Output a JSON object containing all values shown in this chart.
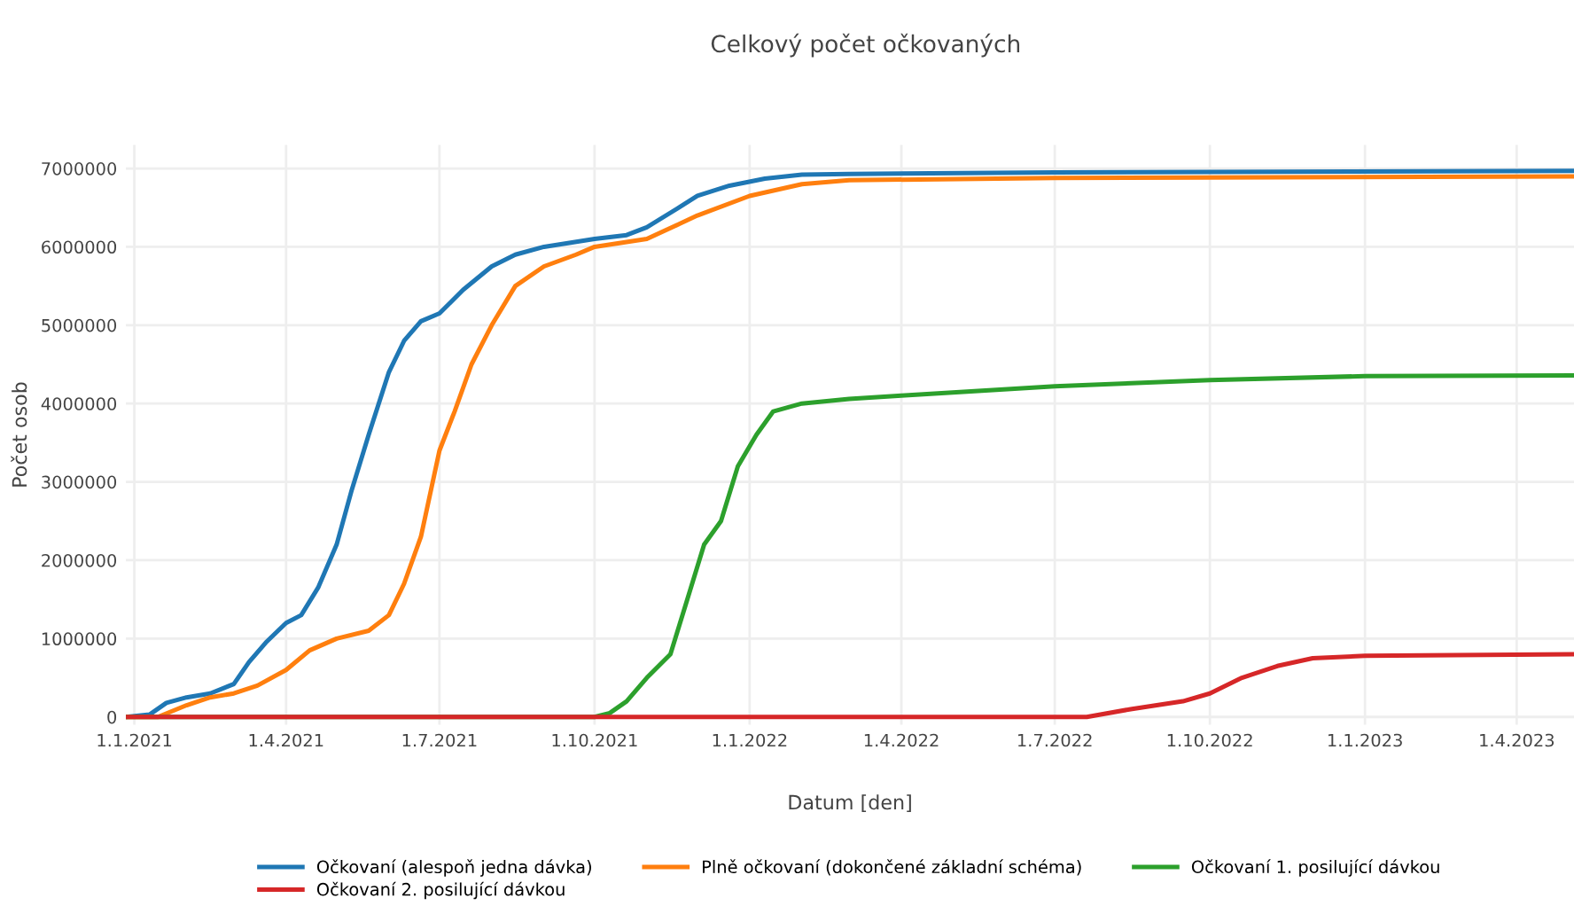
{
  "chart_data": {
    "type": "line",
    "title": "Celkový počet očkovaných",
    "xlabel": "Datum [den]",
    "ylabel": "Počet osob",
    "xlim": [
      "2020-12-27",
      "2023-05-05"
    ],
    "ylim": [
      -100000,
      7300000
    ],
    "xticks": [
      {
        "value": "2021-01-01",
        "label": "1.1.2021"
      },
      {
        "value": "2021-04-01",
        "label": "1.4.2021"
      },
      {
        "value": "2021-07-01",
        "label": "1.7.2021"
      },
      {
        "value": "2021-10-01",
        "label": "1.10.2021"
      },
      {
        "value": "2022-01-01",
        "label": "1.1.2022"
      },
      {
        "value": "2022-04-01",
        "label": "1.4.2022"
      },
      {
        "value": "2022-07-01",
        "label": "1.7.2022"
      },
      {
        "value": "2022-10-01",
        "label": "1.10.2022"
      },
      {
        "value": "2023-01-01",
        "label": "1.1.2023"
      },
      {
        "value": "2023-04-01",
        "label": "1.4.2023"
      }
    ],
    "yticks": [
      0,
      1000000,
      2000000,
      3000000,
      4000000,
      5000000,
      6000000,
      7000000
    ],
    "grid": true,
    "legend": "bottom",
    "series": [
      {
        "name": "Očkovaní (alespoň jedna dávka)",
        "color": "#1f77b4",
        "x": [
          "2020-12-27",
          "2021-01-10",
          "2021-01-20",
          "2021-02-01",
          "2021-02-15",
          "2021-03-01",
          "2021-03-10",
          "2021-03-20",
          "2021-04-01",
          "2021-04-10",
          "2021-04-20",
          "2021-05-01",
          "2021-05-10",
          "2021-05-20",
          "2021-06-01",
          "2021-06-10",
          "2021-06-20",
          "2021-07-01",
          "2021-07-15",
          "2021-08-01",
          "2021-08-15",
          "2021-09-01",
          "2021-10-01",
          "2021-10-20",
          "2021-11-01",
          "2021-11-20",
          "2021-12-01",
          "2021-12-20",
          "2022-01-10",
          "2022-02-01",
          "2022-03-01",
          "2022-07-01",
          "2023-05-05"
        ],
        "values": [
          0,
          30000,
          180000,
          250000,
          300000,
          420000,
          700000,
          950000,
          1200000,
          1300000,
          1650000,
          2200000,
          2900000,
          3600000,
          4400000,
          4800000,
          5050000,
          5150000,
          5450000,
          5750000,
          5900000,
          6000000,
          6100000,
          6150000,
          6250000,
          6500000,
          6650000,
          6780000,
          6870000,
          6920000,
          6930000,
          6950000,
          6970000
        ]
      },
      {
        "name": "Plně očkovaní (dokončené základní schéma)",
        "color": "#ff7f0e",
        "x": [
          "2020-12-27",
          "2021-01-15",
          "2021-02-01",
          "2021-02-15",
          "2021-03-01",
          "2021-03-15",
          "2021-04-01",
          "2021-04-15",
          "2021-05-01",
          "2021-05-20",
          "2021-06-01",
          "2021-06-10",
          "2021-06-20",
          "2021-07-01",
          "2021-07-10",
          "2021-07-20",
          "2021-08-01",
          "2021-08-15",
          "2021-09-01",
          "2021-09-20",
          "2021-10-01",
          "2021-11-01",
          "2021-12-01",
          "2022-01-01",
          "2022-02-01",
          "2022-03-01",
          "2022-07-01",
          "2023-05-05"
        ],
        "values": [
          0,
          0,
          150000,
          250000,
          300000,
          400000,
          600000,
          850000,
          1000000,
          1100000,
          1300000,
          1700000,
          2300000,
          3400000,
          3900000,
          4500000,
          5000000,
          5500000,
          5750000,
          5900000,
          6000000,
          6100000,
          6400000,
          6650000,
          6800000,
          6850000,
          6880000,
          6900000
        ]
      },
      {
        "name": "Očkovaní 1. posilující dávkou",
        "color": "#2ca02c",
        "x": [
          "2020-12-27",
          "2021-10-01",
          "2021-10-10",
          "2021-10-20",
          "2021-11-01",
          "2021-11-15",
          "2021-11-25",
          "2021-12-05",
          "2021-12-15",
          "2021-12-25",
          "2022-01-05",
          "2022-01-15",
          "2022-02-01",
          "2022-03-01",
          "2022-04-01",
          "2022-07-01",
          "2022-10-01",
          "2023-01-01",
          "2023-05-05"
        ],
        "values": [
          0,
          0,
          50000,
          200000,
          500000,
          800000,
          1500000,
          2200000,
          2500000,
          3200000,
          3600000,
          3900000,
          4000000,
          4060000,
          4100000,
          4220000,
          4300000,
          4350000,
          4360000
        ]
      },
      {
        "name": "Očkovaní 2. posilující dávkou",
        "color": "#d62728",
        "x": [
          "2020-12-27",
          "2022-07-20",
          "2022-08-15",
          "2022-09-15",
          "2022-10-01",
          "2022-10-20",
          "2022-11-10",
          "2022-12-01",
          "2023-01-01",
          "2023-05-05"
        ],
        "values": [
          0,
          0,
          100000,
          200000,
          300000,
          500000,
          650000,
          750000,
          780000,
          800000
        ]
      }
    ]
  }
}
